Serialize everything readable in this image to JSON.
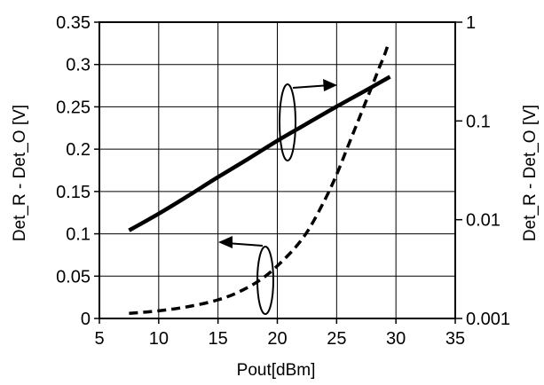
{
  "chart_data": {
    "type": "line",
    "title": "",
    "xlabel": "Pout[dBm]",
    "ylabel_left": "Det_R - Det_O [V]",
    "ylabel_right": "Det_R - Det_O [V]",
    "xlim": [
      5,
      35
    ],
    "ylim_left": [
      0,
      0.35
    ],
    "ylim_right": [
      0.001,
      1
    ],
    "yscale_right": "log",
    "grid": true,
    "x_ticks": [
      "5",
      "10",
      "15",
      "20",
      "25",
      "30",
      "35"
    ],
    "y_left_ticks": [
      "0",
      "0.05",
      "0.1",
      "0.15",
      "0.2",
      "0.25",
      "0.3",
      "0.35"
    ],
    "y_right_ticks": [
      "0.001",
      "0.01",
      "0.1",
      "1"
    ],
    "series": [
      {
        "axis": "right",
        "style": "solid",
        "color": "#000000",
        "x": [
          7.5,
          10,
          12.5,
          15,
          17.5,
          20,
          22.5,
          25,
          27.5,
          29.5
        ],
        "y": [
          0.0078,
          0.0115,
          0.0175,
          0.027,
          0.041,
          0.063,
          0.094,
          0.14,
          0.205,
          0.28
        ]
      },
      {
        "axis": "left",
        "style": "dashed",
        "color": "#000000",
        "x": [
          7.5,
          10,
          12.5,
          15,
          17,
          19,
          21,
          22.5,
          24,
          25,
          26,
          27,
          28,
          28.5,
          29,
          29.3
        ],
        "y": [
          0.006,
          0.009,
          0.014,
          0.022,
          0.033,
          0.05,
          0.076,
          0.102,
          0.14,
          0.17,
          0.205,
          0.24,
          0.275,
          0.293,
          0.31,
          0.322
        ]
      }
    ]
  }
}
